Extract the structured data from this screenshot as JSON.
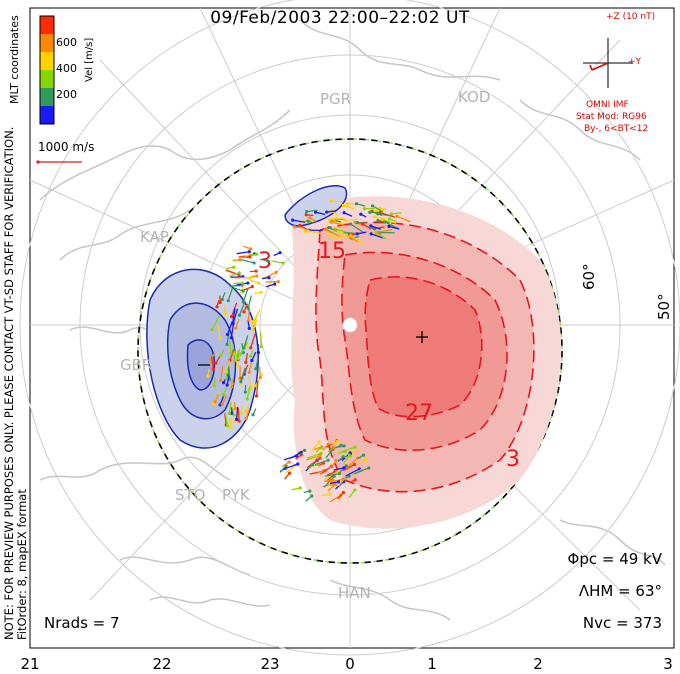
{
  "title": "09/Feb/2003 22:00–22:02 UT",
  "x_ticks": [
    "21",
    "22",
    "23",
    "0",
    "1",
    "2",
    "3"
  ],
  "lat_labels": [
    "60°",
    "50°"
  ],
  "stations": [
    "PGR",
    "KOD",
    "KAP",
    "GBR",
    "STO",
    "PYK",
    "HAN"
  ],
  "colorbar": {
    "title": "Vel [m/s]",
    "ticks": [
      "600",
      "400",
      "200"
    ],
    "colors": [
      "#ff2a00",
      "#ff8800",
      "#ffd200",
      "#88d600",
      "#2e9a5e",
      "#1a1aff"
    ]
  },
  "mlt_label": "MLT coordinates",
  "velocity_scale": "1000 m/s",
  "side_note_1": "NOTE: FOR PREVIEW PURPOSES ONLY. PLEASE CONTACT VT-SD STAFF FOR VERIFICATION.",
  "side_note_2": "FitOrder: 8, mapEX format",
  "imf": {
    "z": "+Z (10 nT)",
    "y": "+Y",
    "source": "OMNI IMF",
    "model": "Stat Mod: RG96",
    "cond": "By-, 6<BT<12"
  },
  "contour_labels": [
    "3",
    "15",
    "27",
    "3"
  ],
  "stats": {
    "phi": "Φpc = 49 kV",
    "lambda": "ΛHM = 63°",
    "nvc": "Nvc = 373",
    "nrads": "Nrads = 7"
  },
  "colors": {
    "positive": "#e8151b",
    "negative": "#1c2ab0",
    "land": "#c8c8c8",
    "grid": "#cccccc"
  }
}
